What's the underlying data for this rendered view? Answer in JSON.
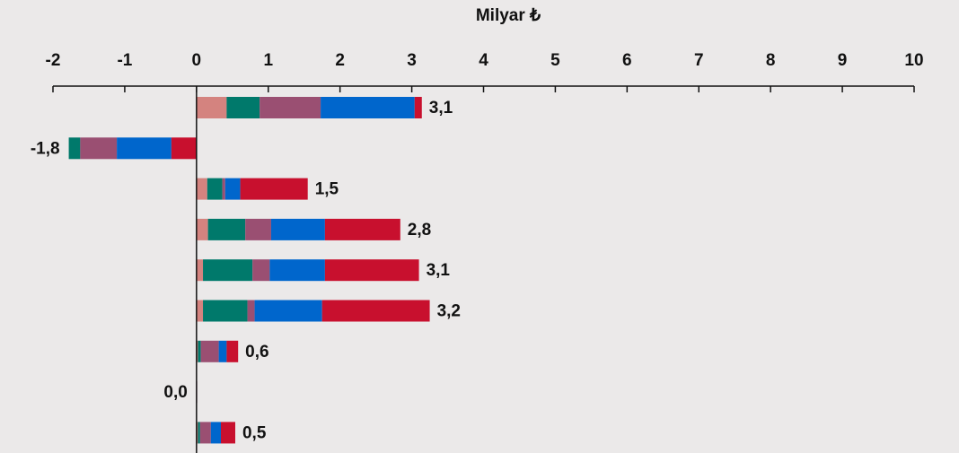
{
  "chart_data": {
    "type": "stacked-bar-horizontal",
    "xlabel": "Milyar ₺",
    "xlim": [
      -2,
      10
    ],
    "xticks": [
      -2,
      -1,
      0,
      1,
      2,
      3,
      4,
      5,
      6,
      7,
      8,
      9,
      10
    ],
    "series": [
      {
        "color": "#d4837f",
        "values": [
          0.42,
          0,
          0.15,
          0.16,
          0.09,
          0.09,
          0.02,
          0,
          0.02
        ]
      },
      {
        "color": "#00796b",
        "values": [
          0.46,
          -0.16,
          0.21,
          0.52,
          0.69,
          0.62,
          0.04,
          0,
          0.03
        ]
      },
      {
        "color": "#9a4f72",
        "values": [
          0.85,
          -0.51,
          0.04,
          0.36,
          0.24,
          0.1,
          0.25,
          0.01,
          0.15
        ]
      },
      {
        "color": "#0066cc",
        "values": [
          1.31,
          -0.76,
          0.21,
          0.75,
          0.77,
          0.94,
          0.11,
          0,
          0.14
        ]
      },
      {
        "color": "#c8102e",
        "values": [
          0.1,
          -0.35,
          0.94,
          1.05,
          1.31,
          1.5,
          0.16,
          0,
          0.2
        ]
      }
    ],
    "totals": {
      "values": [
        3.1,
        -1.8,
        1.5,
        2.8,
        3.1,
        3.2,
        0.6,
        0.0,
        0.5
      ],
      "value_labels": [
        "3,1",
        "-1,8",
        "1,5",
        "2,8",
        "3,1",
        "3,2",
        "0,6",
        "0,0",
        "0,5"
      ]
    }
  }
}
